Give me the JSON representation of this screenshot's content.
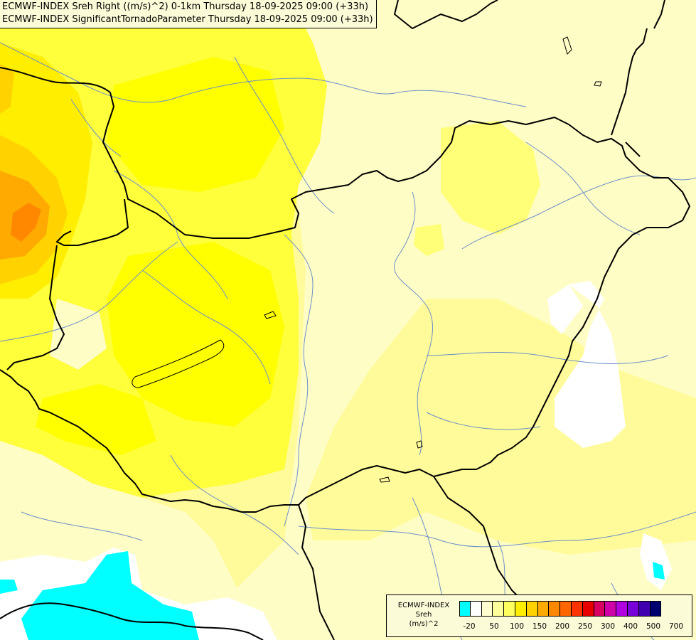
{
  "header": {
    "line1": "ECMWF-INDEX Sreh Right ((m/s)^2) 0-1km Thursday 18-09-2025 09:00 (+33h)",
    "line2": "ECMWF-INDEX SignificantTornadoParameter Thursday 18-09-2025 09:00 (+33h)"
  },
  "legend": {
    "title_line1": "ECMWF-INDEX",
    "title_line2": "Sreh",
    "title_line3": "(m/s)^2",
    "tick_labels": [
      "-20",
      "50",
      "100",
      "150",
      "200",
      "250",
      "300",
      "400",
      "500",
      "700"
    ],
    "colors": [
      "#00ffff",
      "#ffffff",
      "#ffffd0",
      "#ffff9c",
      "#ffff60",
      "#ffee00",
      "#ffd200",
      "#ffaa00",
      "#ff8800",
      "#ff6600",
      "#ff3300",
      "#e80000",
      "#d80060",
      "#d000a8",
      "#b000e0",
      "#7800d8",
      "#4000b0",
      "#000070"
    ]
  },
  "palette": {
    "pale_yellow": "#fffdc4",
    "light_yellow": "#ffff96",
    "yellow": "#ffff50",
    "bright_yellow": "#ffff00",
    "gold": "#ffde00",
    "orange": "#ffa800",
    "dark_orange": "#ff8800",
    "cyan": "#00ffff",
    "river": "#6d8fc7",
    "border": "#000000"
  }
}
